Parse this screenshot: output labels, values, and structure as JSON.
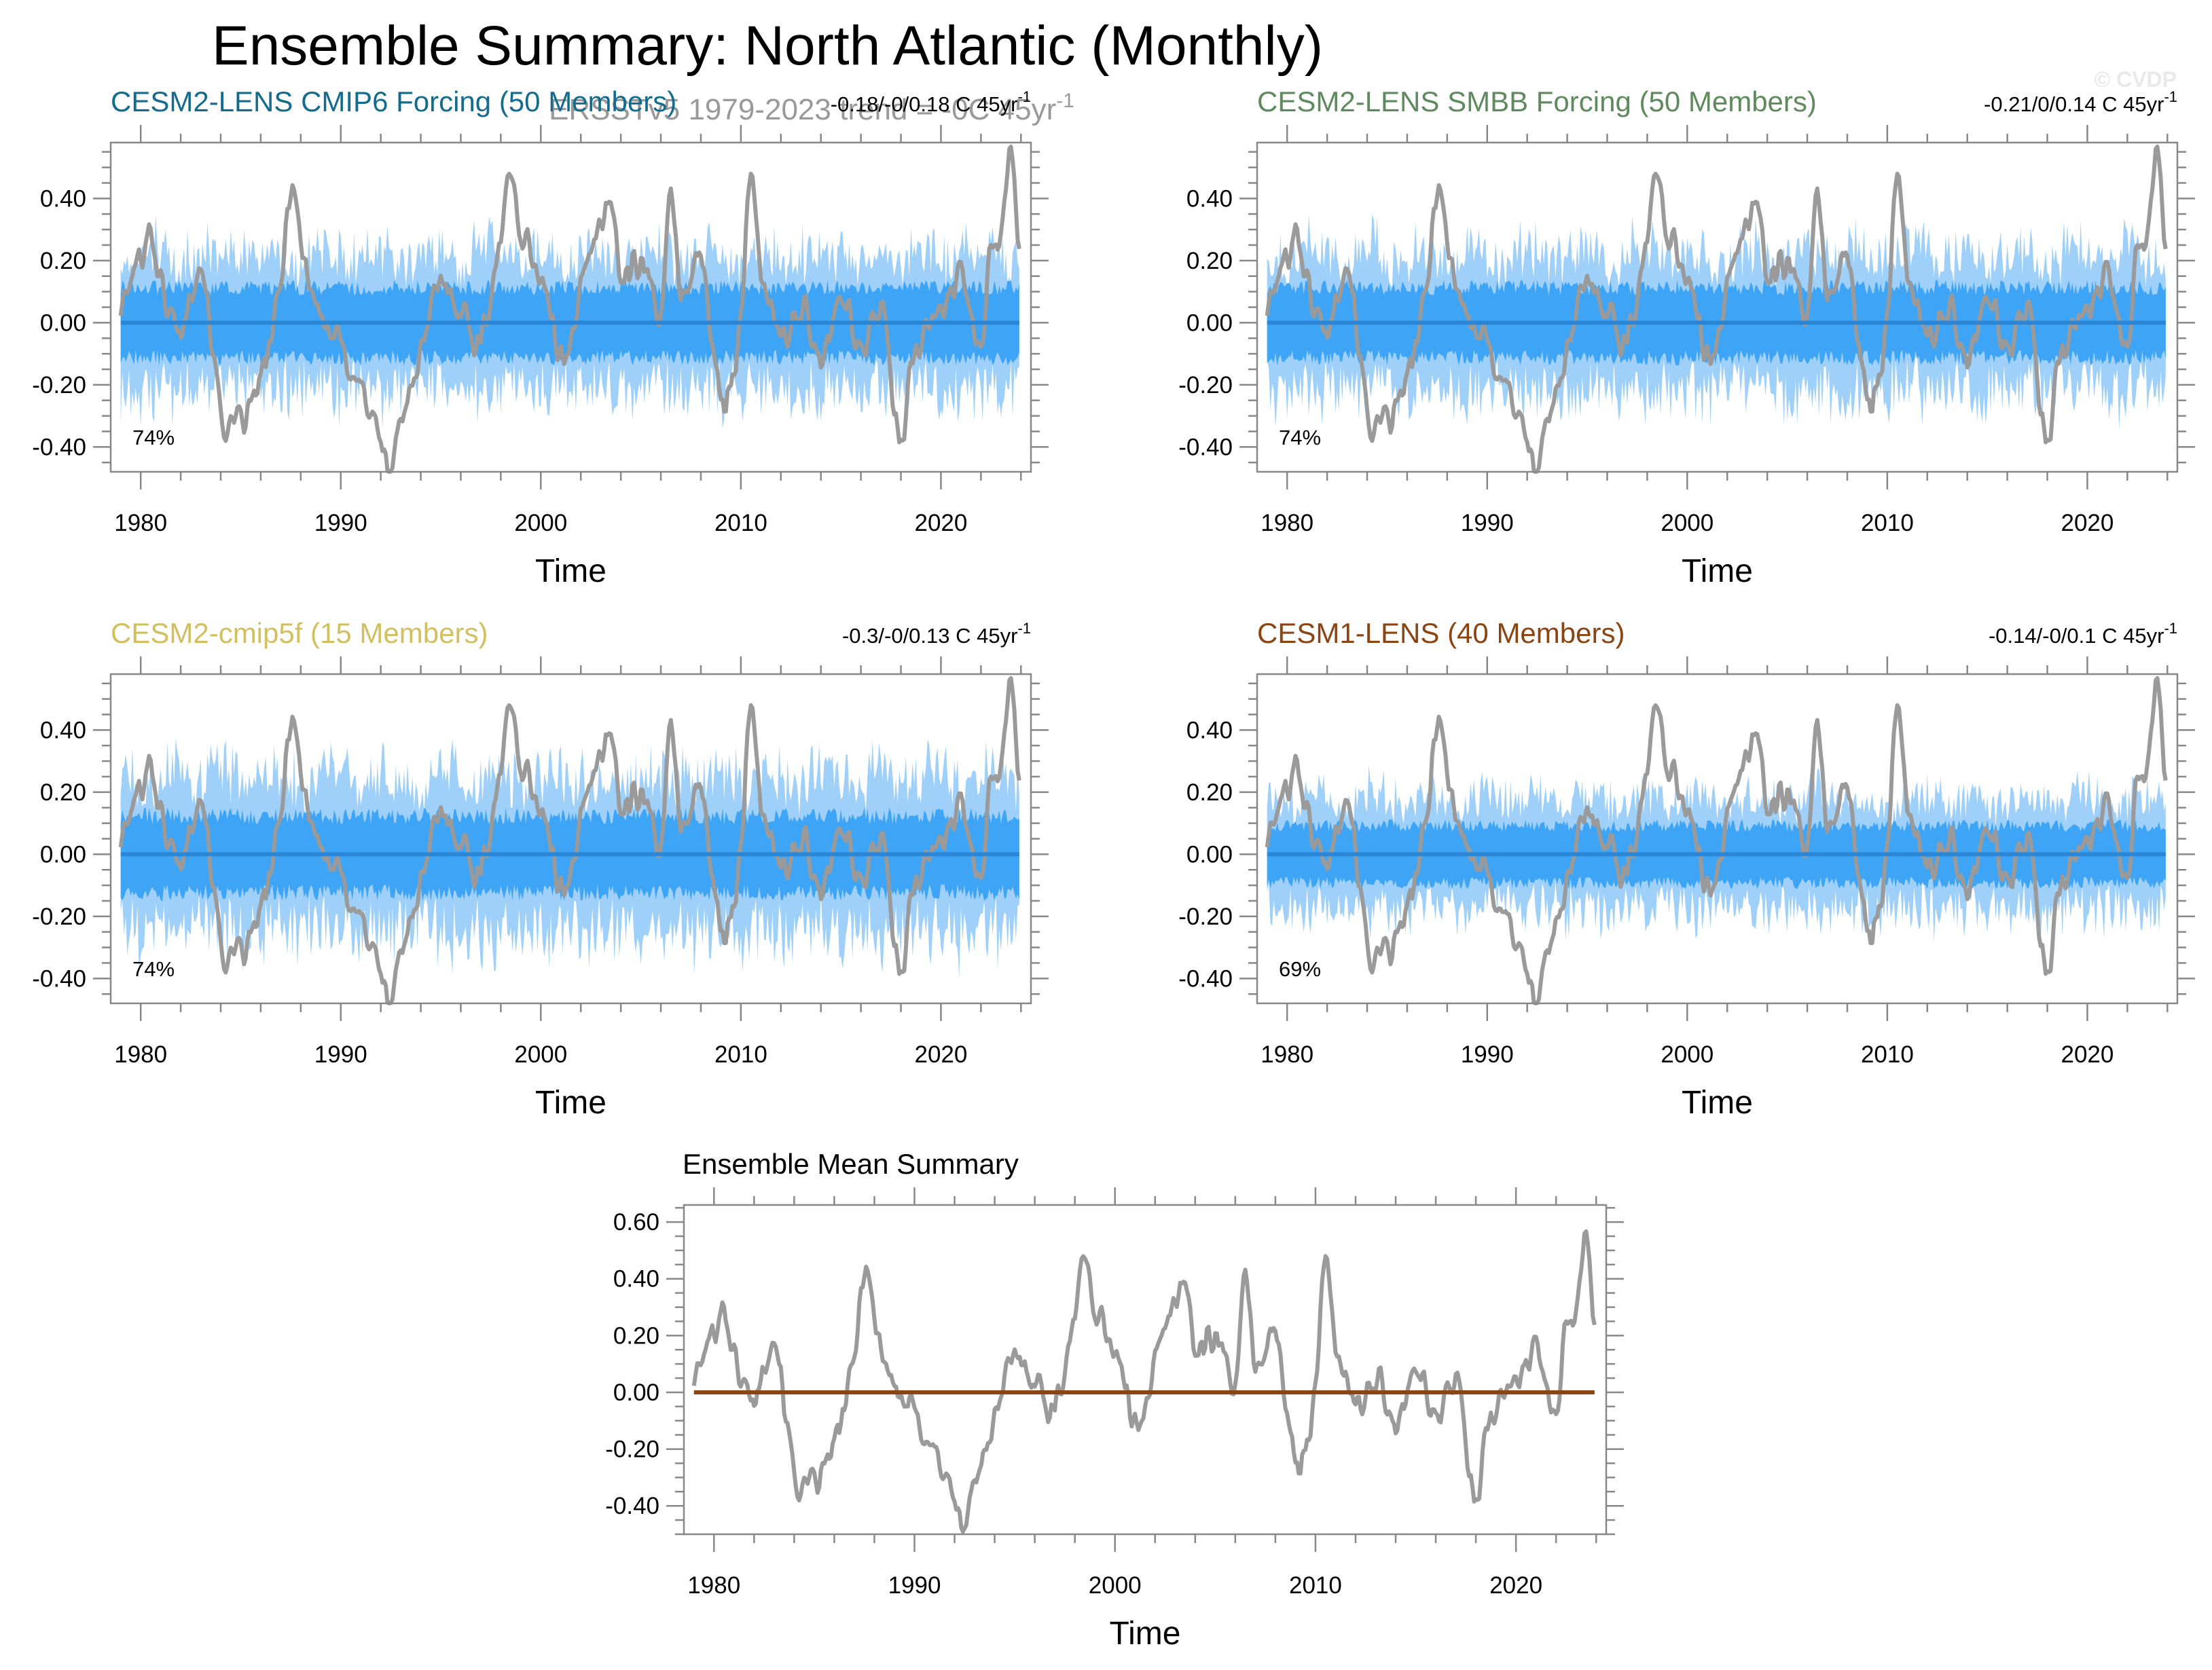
{
  "figure": {
    "title": "Ensemble Summary: North Atlantic (Monthly)",
    "subtitle": "ERSSTv5 1979-2023 trend = -0C 45yr",
    "subtitle_sup": "-1",
    "copyright": "© CVDP"
  },
  "colors": {
    "obs": "#9a9a9a",
    "band_outer": "#9fd0fa",
    "band_inner": "#3ea4f6",
    "ens_mean": "#2c86d6",
    "mean_summary": "#8b4513",
    "axis": "#888888"
  },
  "chart_data": [
    {
      "type": "area",
      "title": "CESM2-LENS CMIP6 Forcing (50 Members)",
      "title_color": "#136c8e",
      "trend_label": "-0.18/-0/0.18 C 45yr",
      "trend_sup": "-1",
      "percent_label": "74%",
      "xlabel": "Time",
      "xlim": [
        1978.5,
        2024.5
      ],
      "ylim": [
        -0.48,
        0.58
      ],
      "xticks": [
        1980,
        1990,
        2000,
        2010,
        2020
      ],
      "xtick_labels": [
        "1980",
        "1990",
        "2000",
        "2010",
        "2020"
      ],
      "yticks": [
        -0.4,
        -0.2,
        0.0,
        0.2,
        0.4
      ],
      "ytick_labels": [
        "-0.40",
        "-0.20",
        "0.00",
        "0.20",
        "0.40"
      ],
      "band_inner_halfwidth": 0.11,
      "band_outer_halfwidth": 0.21,
      "ens_mean": 0.0,
      "seed": 7,
      "series": [
        {
          "name": "ERSSTv5 observed anomaly",
          "x": [
            1979.0,
            1980.0,
            1980.5,
            1981.0,
            1982.0,
            1983.0,
            1984.0,
            1985.0,
            1986.0,
            1987.0,
            1987.5,
            1988.0,
            1989.0,
            1990.0,
            1991.0,
            1992.0,
            1992.5,
            1993.0,
            1994.0,
            1995.0,
            1996.0,
            1997.0,
            1998.0,
            1998.5,
            1999.0,
            2000.0,
            2001.0,
            2002.0,
            2003.0,
            2003.5,
            2004.0,
            2005.0,
            2006.0,
            2006.5,
            2007.0,
            2008.0,
            2009.0,
            2010.0,
            2010.5,
            2011.0,
            2012.0,
            2013.0,
            2014.0,
            2015.0,
            2016.0,
            2017.0,
            2018.0,
            2018.5,
            2019.0,
            2020.0,
            2021.0,
            2022.0,
            2022.5,
            2023.0,
            2023.5,
            2023.9
          ],
          "values": [
            0.05,
            0.22,
            0.3,
            0.12,
            -0.02,
            0.2,
            -0.28,
            -0.33,
            -0.18,
            0.1,
            0.46,
            0.25,
            0.02,
            -0.08,
            -0.2,
            -0.38,
            -0.47,
            -0.3,
            -0.1,
            0.12,
            0.05,
            -0.05,
            0.28,
            0.46,
            0.3,
            0.15,
            -0.1,
            0.1,
            0.32,
            0.4,
            0.15,
            0.2,
            0.05,
            0.38,
            0.1,
            0.2,
            -0.25,
            0.0,
            0.46,
            0.18,
            -0.05,
            0.05,
            -0.1,
            0.1,
            -0.1,
            0.05,
            -0.4,
            -0.15,
            -0.05,
            0.05,
            0.15,
            -0.05,
            0.25,
            0.3,
            0.58,
            0.26
          ]
        }
      ]
    },
    {
      "type": "area",
      "title": "CESM2-LENS SMBB Forcing (50 Members)",
      "title_color": "#5e8a5e",
      "trend_label": "-0.21/0/0.14 C 45yr",
      "trend_sup": "-1",
      "percent_label": "74%",
      "xlabel": "Time",
      "xlim": [
        1978.5,
        2024.5
      ],
      "ylim": [
        -0.48,
        0.58
      ],
      "xticks": [
        1980,
        1990,
        2000,
        2010,
        2020
      ],
      "xtick_labels": [
        "1980",
        "1990",
        "2000",
        "2010",
        "2020"
      ],
      "yticks": [
        -0.4,
        -0.2,
        0.0,
        0.2,
        0.4
      ],
      "ytick_labels": [
        "-0.40",
        "-0.20",
        "0.00",
        "0.20",
        "0.40"
      ],
      "band_inner_halfwidth": 0.11,
      "band_outer_halfwidth": 0.21,
      "ens_mean": 0.0,
      "seed": 19,
      "series": [
        {
          "name": "ERSSTv5 observed anomaly",
          "x": [
            1979.0,
            1980.0,
            1980.5,
            1981.0,
            1982.0,
            1983.0,
            1984.0,
            1985.0,
            1986.0,
            1987.0,
            1987.5,
            1988.0,
            1989.0,
            1990.0,
            1991.0,
            1992.0,
            1992.5,
            1993.0,
            1994.0,
            1995.0,
            1996.0,
            1997.0,
            1998.0,
            1998.5,
            1999.0,
            2000.0,
            2001.0,
            2002.0,
            2003.0,
            2003.5,
            2004.0,
            2005.0,
            2006.0,
            2006.5,
            2007.0,
            2008.0,
            2009.0,
            2010.0,
            2010.5,
            2011.0,
            2012.0,
            2013.0,
            2014.0,
            2015.0,
            2016.0,
            2017.0,
            2018.0,
            2018.5,
            2019.0,
            2020.0,
            2021.0,
            2022.0,
            2022.5,
            2023.0,
            2023.5,
            2023.9
          ],
          "values": [
            0.05,
            0.22,
            0.3,
            0.12,
            -0.02,
            0.2,
            -0.28,
            -0.33,
            -0.18,
            0.1,
            0.46,
            0.25,
            0.02,
            -0.08,
            -0.2,
            -0.38,
            -0.47,
            -0.3,
            -0.1,
            0.12,
            0.05,
            -0.05,
            0.28,
            0.46,
            0.3,
            0.15,
            -0.1,
            0.1,
            0.32,
            0.4,
            0.15,
            0.2,
            0.05,
            0.38,
            0.1,
            0.2,
            -0.25,
            0.0,
            0.46,
            0.18,
            -0.05,
            0.05,
            -0.1,
            0.1,
            -0.1,
            0.05,
            -0.4,
            -0.15,
            -0.05,
            0.05,
            0.15,
            -0.05,
            0.25,
            0.3,
            0.58,
            0.26
          ]
        }
      ]
    },
    {
      "type": "area",
      "title": "CESM2-cmip5f (15 Members)",
      "title_color": "#d2c060",
      "trend_label": "-0.3/-0/0.13 C 45yr",
      "trend_sup": "-1",
      "percent_label": "74%",
      "xlabel": "Time",
      "xlim": [
        1978.5,
        2024.5
      ],
      "ylim": [
        -0.48,
        0.58
      ],
      "xticks": [
        1980,
        1990,
        2000,
        2010,
        2020
      ],
      "xtick_labels": [
        "1980",
        "1990",
        "2000",
        "2010",
        "2020"
      ],
      "yticks": [
        -0.4,
        -0.2,
        0.0,
        0.2,
        0.4
      ],
      "ytick_labels": [
        "-0.40",
        "-0.20",
        "0.00",
        "0.20",
        "0.40"
      ],
      "band_inner_halfwidth": 0.12,
      "band_outer_halfwidth": 0.24,
      "ens_mean": 0.0,
      "seed": 31,
      "series": [
        {
          "name": "ERSSTv5 observed anomaly",
          "x": [
            1979.0,
            1980.0,
            1980.5,
            1981.0,
            1982.0,
            1983.0,
            1984.0,
            1985.0,
            1986.0,
            1987.0,
            1987.5,
            1988.0,
            1989.0,
            1990.0,
            1991.0,
            1992.0,
            1992.5,
            1993.0,
            1994.0,
            1995.0,
            1996.0,
            1997.0,
            1998.0,
            1998.5,
            1999.0,
            2000.0,
            2001.0,
            2002.0,
            2003.0,
            2003.5,
            2004.0,
            2005.0,
            2006.0,
            2006.5,
            2007.0,
            2008.0,
            2009.0,
            2010.0,
            2010.5,
            2011.0,
            2012.0,
            2013.0,
            2014.0,
            2015.0,
            2016.0,
            2017.0,
            2018.0,
            2018.5,
            2019.0,
            2020.0,
            2021.0,
            2022.0,
            2022.5,
            2023.0,
            2023.5,
            2023.9
          ],
          "values": [
            0.05,
            0.22,
            0.3,
            0.12,
            -0.02,
            0.2,
            -0.28,
            -0.33,
            -0.18,
            0.1,
            0.46,
            0.25,
            0.02,
            -0.08,
            -0.2,
            -0.38,
            -0.47,
            -0.3,
            -0.1,
            0.12,
            0.05,
            -0.05,
            0.28,
            0.46,
            0.3,
            0.15,
            -0.1,
            0.1,
            0.32,
            0.4,
            0.15,
            0.2,
            0.05,
            0.38,
            0.1,
            0.2,
            -0.25,
            0.0,
            0.46,
            0.18,
            -0.05,
            0.05,
            -0.1,
            0.1,
            -0.1,
            0.05,
            -0.4,
            -0.15,
            -0.05,
            0.05,
            0.15,
            -0.05,
            0.25,
            0.3,
            0.58,
            0.26
          ]
        }
      ]
    },
    {
      "type": "area",
      "title": "CESM1-LENS (40 Members)",
      "title_color": "#8b4513",
      "trend_label": "-0.14/-0/0.1 C 45yr",
      "trend_sup": "-1",
      "percent_label": "69%",
      "xlabel": "Time",
      "xlim": [
        1978.5,
        2024.5
      ],
      "ylim": [
        -0.48,
        0.58
      ],
      "xticks": [
        1980,
        1990,
        2000,
        2010,
        2020
      ],
      "xtick_labels": [
        "1980",
        "1990",
        "2000",
        "2010",
        "2020"
      ],
      "yticks": [
        -0.4,
        -0.2,
        0.0,
        0.2,
        0.4
      ],
      "ytick_labels": [
        "-0.40",
        "-0.20",
        "0.00",
        "0.20",
        "0.40"
      ],
      "band_inner_halfwidth": 0.09,
      "band_outer_halfwidth": 0.17,
      "ens_mean": 0.0,
      "seed": 43,
      "series": [
        {
          "name": "ERSSTv5 observed anomaly",
          "x": [
            1979.0,
            1980.0,
            1980.5,
            1981.0,
            1982.0,
            1983.0,
            1984.0,
            1985.0,
            1986.0,
            1987.0,
            1987.5,
            1988.0,
            1989.0,
            1990.0,
            1991.0,
            1992.0,
            1992.5,
            1993.0,
            1994.0,
            1995.0,
            1996.0,
            1997.0,
            1998.0,
            1998.5,
            1999.0,
            2000.0,
            2001.0,
            2002.0,
            2003.0,
            2003.5,
            2004.0,
            2005.0,
            2006.0,
            2006.5,
            2007.0,
            2008.0,
            2009.0,
            2010.0,
            2010.5,
            2011.0,
            2012.0,
            2013.0,
            2014.0,
            2015.0,
            2016.0,
            2017.0,
            2018.0,
            2018.5,
            2019.0,
            2020.0,
            2021.0,
            2022.0,
            2022.5,
            2023.0,
            2023.5,
            2023.9
          ],
          "values": [
            0.05,
            0.22,
            0.3,
            0.12,
            -0.02,
            0.2,
            -0.28,
            -0.33,
            -0.18,
            0.1,
            0.46,
            0.25,
            0.02,
            -0.08,
            -0.2,
            -0.38,
            -0.47,
            -0.3,
            -0.1,
            0.12,
            0.05,
            -0.05,
            0.28,
            0.46,
            0.3,
            0.15,
            -0.1,
            0.1,
            0.32,
            0.4,
            0.15,
            0.2,
            0.05,
            0.38,
            0.1,
            0.2,
            -0.25,
            0.0,
            0.46,
            0.18,
            -0.05,
            0.05,
            -0.1,
            0.1,
            -0.1,
            0.05,
            -0.4,
            -0.15,
            -0.05,
            0.05,
            0.15,
            -0.05,
            0.25,
            0.3,
            0.58,
            0.26
          ]
        }
      ]
    },
    {
      "type": "line",
      "title": "Ensemble Mean Summary",
      "title_color": "#000000",
      "xlabel": "Time",
      "xlim": [
        1978.5,
        2024.5
      ],
      "ylim": [
        -0.5,
        0.66
      ],
      "xticks": [
        1980,
        1990,
        2000,
        2010,
        2020
      ],
      "xtick_labels": [
        "1980",
        "1990",
        "2000",
        "2010",
        "2020"
      ],
      "yticks": [
        -0.4,
        -0.2,
        0.0,
        0.2,
        0.4,
        0.6
      ],
      "ytick_labels": [
        "-0.40",
        "-0.20",
        "0.00",
        "0.20",
        "0.40",
        "0.60"
      ],
      "ens_mean": 0.0,
      "series": [
        {
          "name": "ERSSTv5 observed anomaly",
          "x": [
            1979.0,
            1980.0,
            1980.5,
            1981.0,
            1982.0,
            1983.0,
            1984.0,
            1985.0,
            1986.0,
            1987.0,
            1987.5,
            1988.0,
            1989.0,
            1990.0,
            1991.0,
            1992.0,
            1992.5,
            1993.0,
            1994.0,
            1995.0,
            1996.0,
            1997.0,
            1998.0,
            1998.5,
            1999.0,
            2000.0,
            2001.0,
            2002.0,
            2003.0,
            2003.5,
            2004.0,
            2005.0,
            2006.0,
            2006.5,
            2007.0,
            2008.0,
            2009.0,
            2010.0,
            2010.5,
            2011.0,
            2012.0,
            2013.0,
            2014.0,
            2015.0,
            2016.0,
            2017.0,
            2018.0,
            2018.5,
            2019.0,
            2020.0,
            2021.0,
            2022.0,
            2022.5,
            2023.0,
            2023.5,
            2023.9
          ],
          "values": [
            0.05,
            0.22,
            0.3,
            0.12,
            -0.02,
            0.2,
            -0.28,
            -0.33,
            -0.18,
            0.1,
            0.46,
            0.25,
            0.02,
            -0.08,
            -0.2,
            -0.38,
            -0.47,
            -0.3,
            -0.1,
            0.12,
            0.05,
            -0.05,
            0.28,
            0.46,
            0.3,
            0.15,
            -0.1,
            0.1,
            0.32,
            0.4,
            0.15,
            0.2,
            0.05,
            0.38,
            0.1,
            0.2,
            -0.25,
            0.0,
            0.46,
            0.18,
            -0.05,
            0.05,
            -0.1,
            0.1,
            -0.1,
            0.05,
            -0.4,
            -0.15,
            -0.05,
            0.05,
            0.15,
            -0.05,
            0.25,
            0.3,
            0.58,
            0.26
          ]
        },
        {
          "name": "ensemble mean",
          "values": [
            0.0
          ]
        }
      ]
    }
  ]
}
